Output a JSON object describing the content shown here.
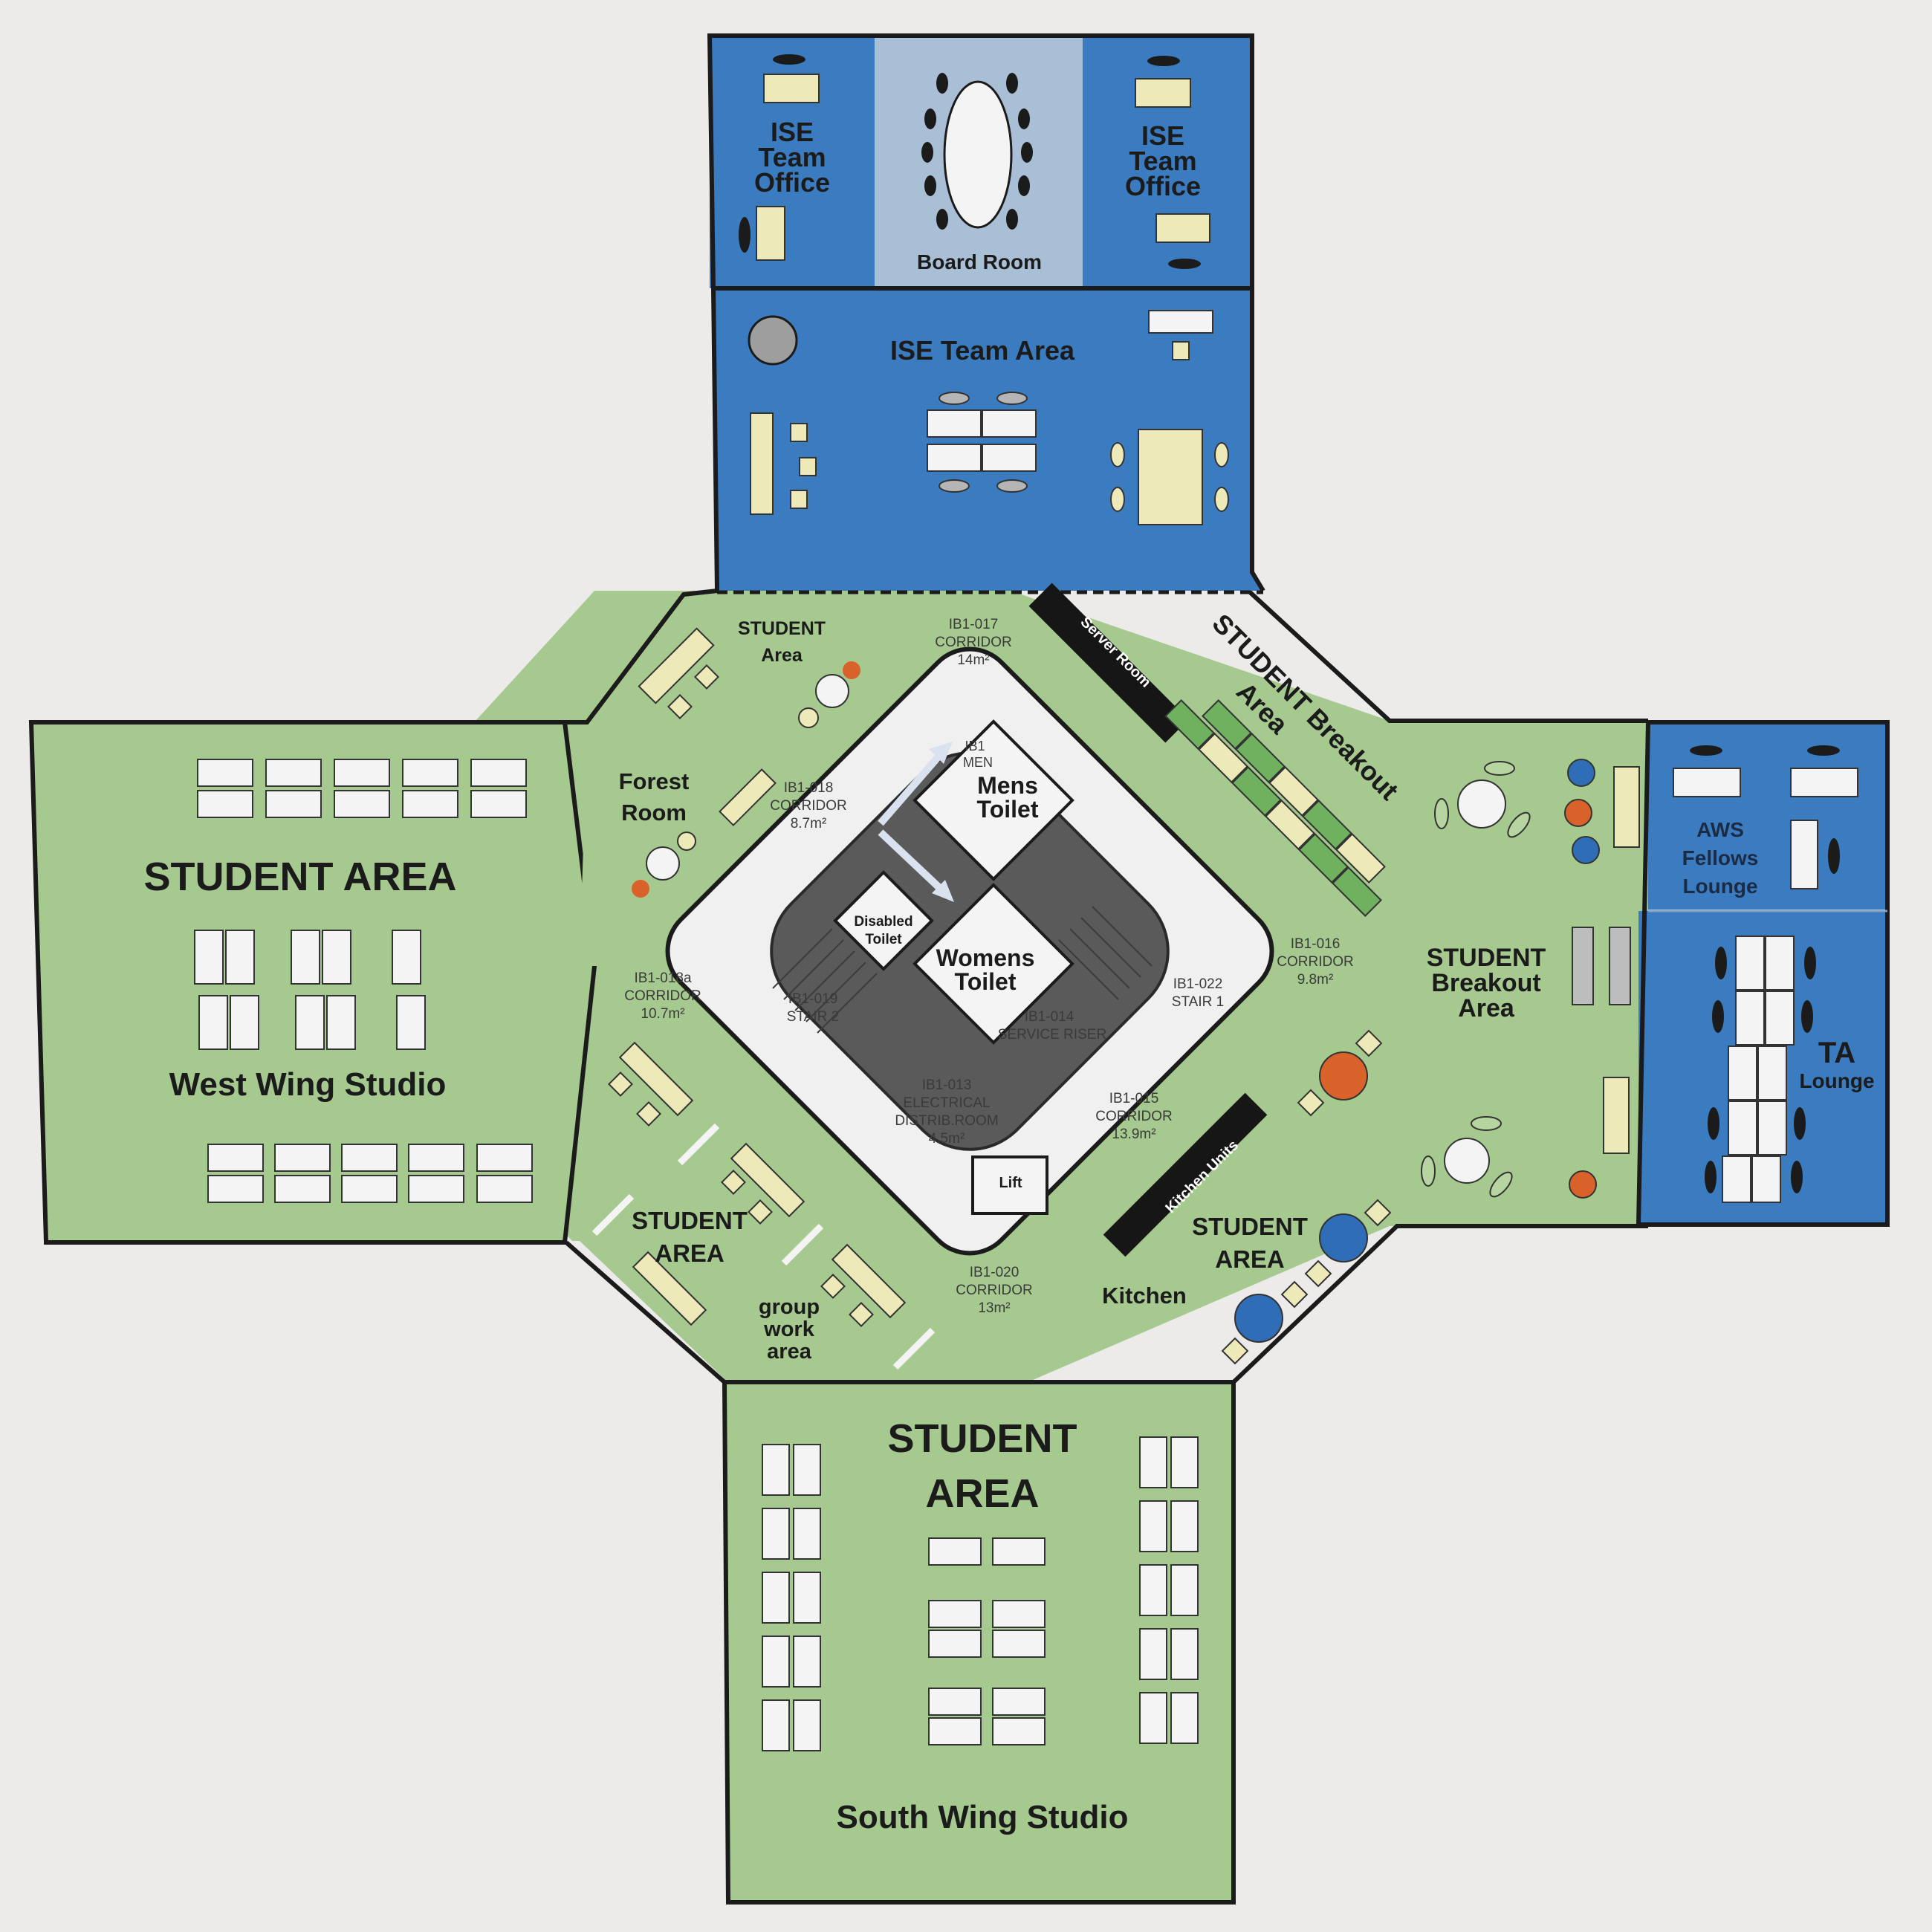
{
  "colors": {
    "green": "#a6c98f",
    "green_light": "#b7d5a0",
    "blue": "#3b7cc0",
    "blue_light": "#a9bfd6",
    "desk": "#ede9b8",
    "table_white": "#f4f4f4",
    "core_dark": "#5a5a5a",
    "core_ring": "#f0f0f0",
    "orange": "#d8622a",
    "seat_blue": "#2f6db6",
    "black_bar": "#161616"
  },
  "north": {
    "ise_office_left": [
      "ISE",
      "Team",
      "Office"
    ],
    "board_room": "Board Room",
    "ise_office_right": [
      "ISE",
      "Team",
      "Office"
    ],
    "ise_team_area": "ISE Team Area"
  },
  "west": {
    "student_area": "STUDENT AREA",
    "studio": "West Wing Studio",
    "forest_room": [
      "Forest",
      "Room"
    ],
    "student_area_nw": [
      "STUDENT",
      "Area"
    ]
  },
  "east": {
    "breakout_ne": [
      "STUDENT Breakout",
      "Area"
    ],
    "breakout_e": [
      "STUDENT",
      "Breakout",
      "Area"
    ],
    "aws_lounge": [
      "AWS",
      "Fellows",
      "Lounge"
    ],
    "ta_lounge": [
      "TA",
      "Lounge"
    ],
    "student_area_se": [
      "STUDENT",
      "AREA"
    ],
    "kitchen": "Kitchen"
  },
  "south": {
    "student_area": [
      "STUDENT",
      "AREA"
    ],
    "studio": "South Wing Studio",
    "student_area_sw": [
      "STUDENT",
      "AREA"
    ],
    "group_work": [
      "group",
      "work",
      "area"
    ]
  },
  "core": {
    "server_room": "Server Room",
    "kitchen_units": "Kitchen Units",
    "mens_toilet": [
      "Mens",
      "Toilet"
    ],
    "womens_toilet": [
      "Womens",
      "Toilet"
    ],
    "disabled_toilet": [
      "Disabled",
      "Toilet"
    ],
    "lift": "Lift",
    "mens_partial": [
      "IB1",
      "MEN"
    ],
    "rooms": {
      "c017": [
        "IB1-017",
        "CORRIDOR",
        "14m²"
      ],
      "c018": [
        "IB1-018",
        "CORRIDOR",
        "8.7m²"
      ],
      "c018a": [
        "IB1-018a",
        "CORRIDOR",
        "10.7m²"
      ],
      "c016": [
        "IB1-016",
        "CORRIDOR",
        "9.8m²"
      ],
      "c015": [
        "IB1-015",
        "CORRIDOR",
        "13.9m²"
      ],
      "c020": [
        "IB1-020",
        "CORRIDOR",
        "13m²"
      ],
      "s019": [
        "IB1-019",
        "STAIR 2"
      ],
      "s022": [
        "IB1-022",
        "STAIR 1"
      ],
      "r014": [
        "IB1-014",
        "SERVICE RISER"
      ],
      "r013": [
        "IB1-013",
        "ELECTRICAL",
        "DISTRIB.ROOM",
        "4.5m²"
      ]
    }
  }
}
